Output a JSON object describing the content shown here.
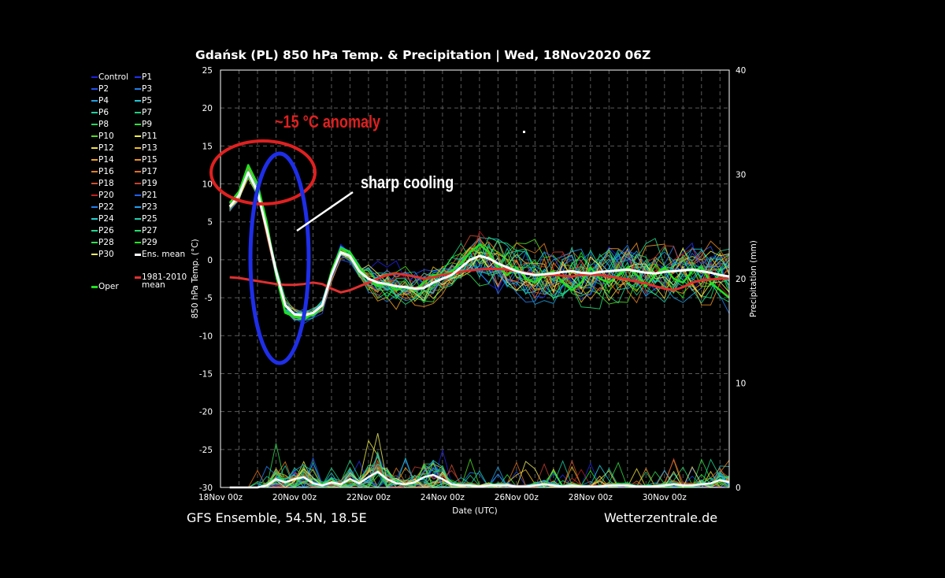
{
  "header": {
    "title": "Gdańsk  (PL)  850 hPa Temp. & Precipitation | Wed, 18Nov2020 06Z"
  },
  "footer": {
    "left": "GFS Ensemble, 54.5N, 18.5E",
    "right": "Wetterzentrale.de"
  },
  "annotations": {
    "anomaly": "~15 °C anomaly",
    "cooling": "sharp cooling"
  },
  "legend": [
    {
      "label": "Control",
      "color": "#2020e0"
    },
    {
      "label": "P1",
      "color": "#2030f0"
    },
    {
      "label": "P2",
      "color": "#2050f0"
    },
    {
      "label": "P3",
      "color": "#2080e8"
    },
    {
      "label": "P4",
      "color": "#20a0e0"
    },
    {
      "label": "P5",
      "color": "#20c8d8"
    },
    {
      "label": "P6",
      "color": "#20d0a0"
    },
    {
      "label": "P7",
      "color": "#20d080"
    },
    {
      "label": "P8",
      "color": "#20d860"
    },
    {
      "label": "P9",
      "color": "#30e040"
    },
    {
      "label": "P10",
      "color": "#50e020"
    },
    {
      "label": "P11",
      "color": "#f0f040"
    },
    {
      "label": "P12",
      "color": "#f0e040"
    },
    {
      "label": "P13",
      "color": "#f0c020"
    },
    {
      "label": "P14",
      "color": "#f0a020"
    },
    {
      "label": "P15",
      "color": "#f09020"
    },
    {
      "label": "P16",
      "color": "#e08020"
    },
    {
      "label": "P17",
      "color": "#e07020"
    },
    {
      "label": "P18",
      "color": "#d05030"
    },
    {
      "label": "P19",
      "color": "#c84030"
    },
    {
      "label": "P20",
      "color": "#c02020"
    },
    {
      "label": "P21",
      "color": "#2060f0"
    },
    {
      "label": "P22",
      "color": "#2080f0"
    },
    {
      "label": "P23",
      "color": "#20a0f0"
    },
    {
      "label": "P24",
      "color": "#20d0d0"
    },
    {
      "label": "P25",
      "color": "#20d0b0"
    },
    {
      "label": "P26",
      "color": "#20d890"
    },
    {
      "label": "P27",
      "color": "#20e070"
    },
    {
      "label": "P28",
      "color": "#30e050"
    },
    {
      "label": "P29",
      "color": "#20f020"
    },
    {
      "label": "P30",
      "color": "#f0f060"
    },
    {
      "label": "Ens. mean",
      "color": "#ffffff"
    },
    {
      "label": "1981-2010 mean",
      "color": "#e03030"
    },
    {
      "label": "Oper",
      "color": "#20e020"
    }
  ],
  "chart_data": {
    "type": "line",
    "title": "Gdańsk  (PL)  850 hPa Temp. & Precipitation | Wed, 18Nov2020 06Z",
    "xlabel": "Date (UTC)",
    "ylabel": "850 hPa Temp. (°C)",
    "y2label": "Precipitation (mm)",
    "x_unit": "days since 18Nov 00z",
    "xlim": [
      0,
      13.75
    ],
    "ylim": [
      -30,
      25
    ],
    "y2lim": [
      0,
      40
    ],
    "x_ticks": [
      "18Nov 00z",
      "20Nov 00z",
      "22Nov 00z",
      "24Nov 00z",
      "26Nov 00z",
      "28Nov 00z",
      "30Nov 00z"
    ],
    "y_ticks": [
      25,
      20,
      15,
      10,
      5,
      0,
      -5,
      -10,
      -15,
      -20,
      -25,
      -30
    ],
    "y2_ticks": [
      40,
      30,
      20,
      10,
      0
    ],
    "grid": true,
    "legend_position": "left",
    "x": [
      0.25,
      0.5,
      0.75,
      1.0,
      1.25,
      1.5,
      1.75,
      2.0,
      2.25,
      2.5,
      2.75,
      3.0,
      3.25,
      3.5,
      3.75,
      4.0,
      4.25,
      4.5,
      4.75,
      5.0,
      5.25,
      5.5,
      5.75,
      6.0,
      6.25,
      6.5,
      6.75,
      7.0,
      7.25,
      7.5,
      7.75,
      8.0,
      8.25,
      8.5,
      8.75,
      9.0,
      9.25,
      9.5,
      9.75,
      10.0,
      10.25,
      10.5,
      10.75,
      11.0,
      11.25,
      11.5,
      11.75,
      12.0,
      12.25,
      12.5,
      12.75,
      13.0,
      13.25,
      13.5,
      13.75
    ],
    "series": [
      {
        "name": "Ens. mean",
        "values": [
          7.0,
          8.5,
          11.5,
          9.0,
          4.0,
          -1.5,
          -6.0,
          -7.2,
          -7.3,
          -7.0,
          -6.0,
          -2.0,
          1.0,
          0.5,
          -1.5,
          -2.5,
          -3.0,
          -3.2,
          -3.5,
          -3.6,
          -3.8,
          -3.7,
          -3.0,
          -2.5,
          -2.0,
          -1.0,
          0.0,
          0.5,
          0.2,
          -0.5,
          -1.0,
          -1.5,
          -1.8,
          -2.0,
          -1.9,
          -1.8,
          -1.6,
          -1.5,
          -1.7,
          -1.8,
          -1.6,
          -1.5,
          -1.4,
          -1.3,
          -1.5,
          -1.7,
          -1.8,
          -1.6,
          -1.5,
          -1.4,
          -1.3,
          -1.5,
          -1.7,
          -2.0,
          -2.2
        ]
      },
      {
        "name": "Oper",
        "values": [
          7.5,
          9.0,
          12.5,
          10.0,
          5.0,
          -2.0,
          -7.0,
          -7.5,
          -7.8,
          -7.2,
          -6.0,
          -1.5,
          1.5,
          1.0,
          -1.0,
          -2.5,
          -3.5,
          -3.0,
          -4.0,
          -3.5,
          -4.0,
          -3.0,
          -2.0,
          -2.0,
          -1.5,
          -0.5,
          1.0,
          2.0,
          1.0,
          -1.0,
          -2.0,
          -1.0,
          -2.5,
          -3.0,
          -2.0,
          -1.5,
          -3.0,
          -4.0,
          -3.0,
          -1.0,
          -2.5,
          -3.0,
          -2.0,
          -1.0,
          -2.0,
          -3.5,
          -2.0,
          -1.0,
          -2.5,
          -3.0,
          -1.5,
          -1.0,
          -3.0,
          -4.0,
          -5.0
        ]
      },
      {
        "name": "1981-2010 mean",
        "values": [
          -2.3,
          -2.4,
          -2.6,
          -2.8,
          -3.0,
          -3.2,
          -3.3,
          -3.3,
          -3.2,
          -3.0,
          -3.2,
          -3.8,
          -4.3,
          -4.0,
          -3.5,
          -3.0,
          -2.5,
          -2.0,
          -1.8,
          -2.0,
          -2.2,
          -2.5,
          -2.3,
          -2.0,
          -1.8,
          -1.6,
          -1.4,
          -1.3,
          -1.2,
          -1.2,
          -1.3,
          -1.5,
          -1.7,
          -1.9,
          -2.0,
          -2.0,
          -2.1,
          -2.2,
          -2.0,
          -1.9,
          -2.0,
          -2.2,
          -2.4,
          -2.6,
          -2.9,
          -3.1,
          -3.5,
          -3.8,
          -4.0,
          -3.6,
          -3.0,
          -2.7,
          -2.6,
          -2.5,
          -2.4
        ]
      },
      {
        "name": "Ens. mean precip",
        "axis": "y2",
        "values": [
          0,
          0,
          0,
          0,
          0.2,
          0.8,
          0.5,
          0.8,
          1.0,
          0.4,
          0.2,
          0.5,
          0.3,
          0.8,
          0.4,
          1.0,
          1.5,
          0.8,
          0.4,
          0.3,
          0.5,
          1.0,
          1.2,
          0.8,
          0.3,
          0.2,
          0.2,
          0.1,
          0.2,
          0.2,
          0.2,
          0.1,
          0.1,
          0.2,
          0.3,
          0.2,
          0.1,
          0.2,
          0.1,
          0.1,
          0.1,
          0.2,
          0.2,
          0.2,
          0.1,
          0.1,
          0.1,
          0.2,
          0.3,
          0.2,
          0.2,
          0.3,
          0.4,
          0.7,
          0.5
        ]
      }
    ]
  }
}
